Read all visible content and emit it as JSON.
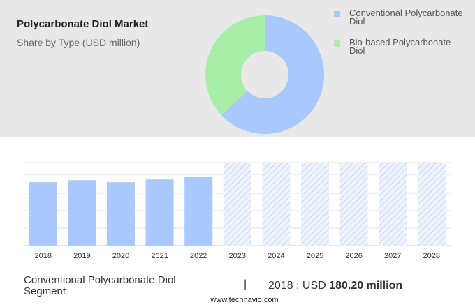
{
  "chart_data": [
    {
      "type": "donut",
      "title": "Polycarbonate Diol Market",
      "subtitle": "Share by Type (USD million)",
      "categories": [
        "Conventional Polycarbonate Diol",
        "Bio-based Polycarbonate Diol"
      ],
      "values": [
        63,
        37
      ],
      "colors": [
        "#a9c8fb",
        "#a8eea8"
      ]
    },
    {
      "type": "bar",
      "categories": [
        "2018",
        "2019",
        "2020",
        "2021",
        "2022",
        "2023",
        "2024",
        "2025",
        "2026",
        "2027",
        "2028"
      ],
      "values": [
        180.2,
        186,
        180,
        188,
        196,
        null,
        null,
        null,
        null,
        null,
        null
      ],
      "color": "#a9c8fb",
      "ylim": [
        0,
        236
      ]
    }
  ],
  "footer": {
    "segment": "Conventional Polycarbonate Diol Segment",
    "year_label": "2018 : USD",
    "value_label": "180.20 million",
    "source": "www.technavio.com"
  }
}
